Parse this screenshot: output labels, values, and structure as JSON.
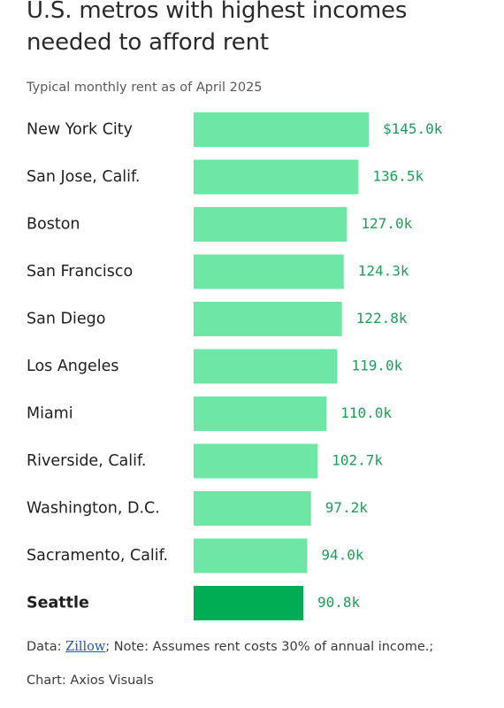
{
  "chart_data": {
    "type": "bar",
    "orientation": "horizontal",
    "title": "U.S. metros with highest incomes needed to afford rent",
    "subtitle": "Typical monthly rent as of April 2025",
    "categories": [
      "New York City",
      "San Jose, Calif.",
      "Boston",
      "San Francisco",
      "San Diego",
      "Los Angeles",
      "Miami",
      "Riverside, Calif.",
      "Washington, D.C.",
      "Sacramento, Calif.",
      "Seattle"
    ],
    "values": [
      145.0,
      136.5,
      127.0,
      124.3,
      122.8,
      119.0,
      110.0,
      102.7,
      97.2,
      94.0,
      90.8
    ],
    "value_labels": [
      "$145.0k",
      "136.5k",
      "127.0k",
      "124.3k",
      "122.8k",
      "119.0k",
      "110.0k",
      "102.7k",
      "97.2k",
      "94.0k",
      "90.8k"
    ],
    "highlight_category": "Seattle",
    "unit": "k",
    "xlim": [
      0,
      145.0
    ],
    "grid": false,
    "legend": "none",
    "colors": {
      "bar": "#6ee6a6",
      "highlight": "#00ad55",
      "value_label": "#1f9e58"
    }
  },
  "footer": {
    "data_prefix": "Data: ",
    "source_name": "Zillow",
    "note": "; Note: Assumes rent costs 30% of annual income.;",
    "credit": "Chart: Axios Visuals"
  }
}
